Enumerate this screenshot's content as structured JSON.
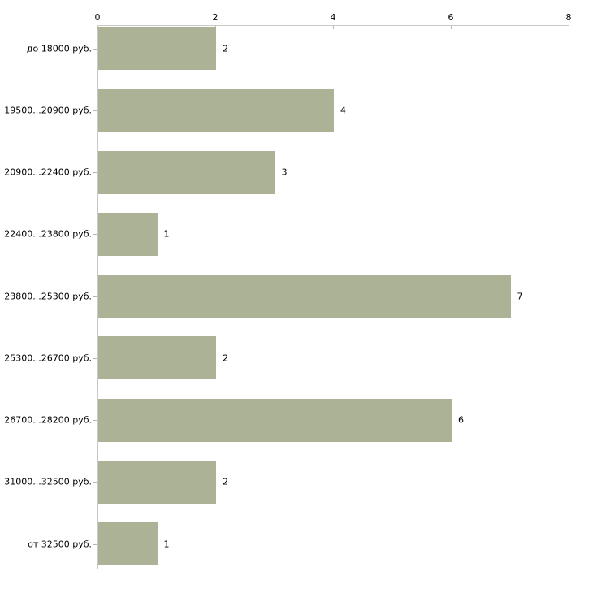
{
  "chart_data": {
    "type": "bar",
    "orientation": "horizontal",
    "title": "",
    "xlabel": "",
    "ylabel": "",
    "categories": [
      "до 18000 руб.",
      "19500...20900 руб.",
      "20900...22400 руб.",
      "22400...23800 руб.",
      "23800...25300 руб.",
      "25300...26700 руб.",
      "26700...28200 руб.",
      "31000...32500 руб.",
      "от 32500 руб."
    ],
    "values": [
      2,
      4,
      3,
      1,
      7,
      2,
      6,
      2,
      1
    ],
    "x_ticks": [
      0,
      2,
      4,
      6,
      8
    ],
    "xlim": [
      0,
      8
    ],
    "axis_position": "top",
    "grid": false,
    "legend": false,
    "colors": {
      "bar": "#acb296",
      "axis_line": "#c9c9c9",
      "tick_mark": "#b8bc9c",
      "text": "#000000",
      "background": "#ffffff"
    }
  }
}
